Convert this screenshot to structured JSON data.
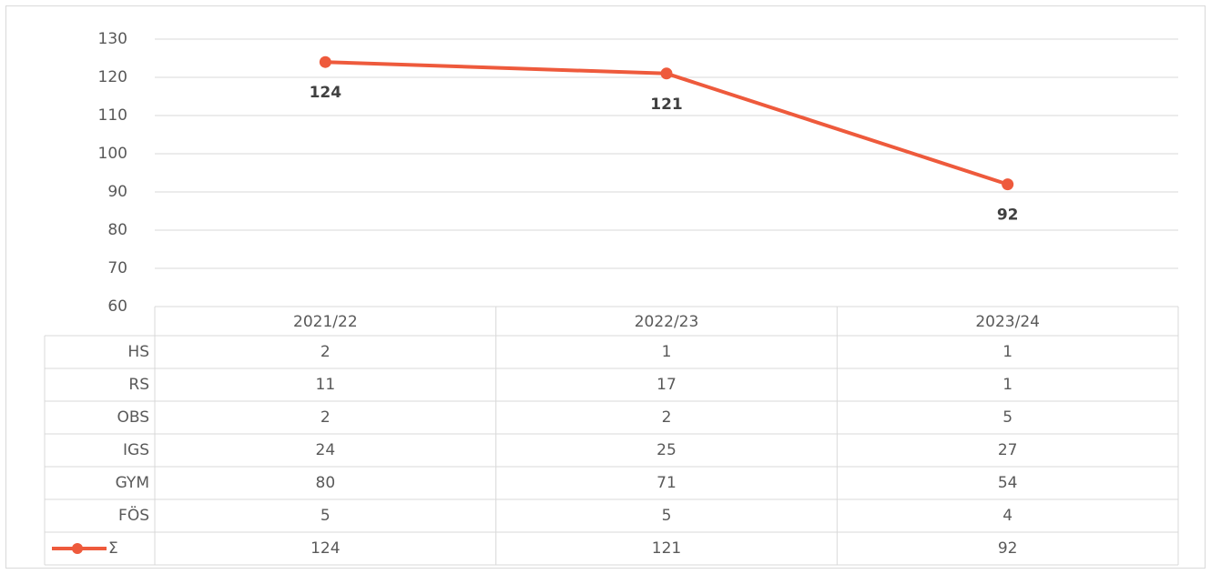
{
  "chart_data": {
    "type": "line",
    "categories": [
      "2021/22",
      "2022/23",
      "2023/24"
    ],
    "series": [
      {
        "name": "Σ",
        "color": "#ee5a3c",
        "values": [
          124,
          121,
          92
        ]
      }
    ],
    "ylim": [
      60,
      130
    ],
    "yticks": [
      60,
      70,
      80,
      90,
      100,
      110,
      120,
      130
    ],
    "grid": true,
    "table": {
      "rows": [
        {
          "name": "HS",
          "values": [
            2,
            1,
            1
          ]
        },
        {
          "name": "RS",
          "values": [
            11,
            17,
            1
          ]
        },
        {
          "name": "OBS",
          "values": [
            2,
            2,
            5
          ]
        },
        {
          "name": "IGS",
          "values": [
            24,
            25,
            27
          ]
        },
        {
          "name": "GYM",
          "values": [
            80,
            71,
            54
          ]
        },
        {
          "name": "FÖS",
          "values": [
            5,
            5,
            4
          ]
        }
      ]
    }
  }
}
